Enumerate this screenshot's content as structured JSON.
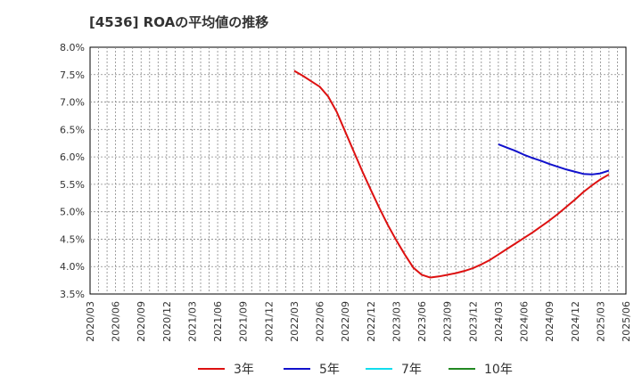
{
  "title": "[4536]  ROAの平均値の推移",
  "chart_data": {
    "type": "line",
    "title": "[4536]  ROAの平均値の推移",
    "xlabel": "",
    "ylabel": "",
    "ylim": [
      3.5,
      8.0
    ],
    "y_ticks": [
      "8.0%",
      "7.5%",
      "7.0%",
      "6.5%",
      "6.0%",
      "5.5%",
      "5.0%",
      "4.5%",
      "4.0%",
      "3.5%"
    ],
    "y_tick_values": [
      8.0,
      7.5,
      7.0,
      6.5,
      6.0,
      5.5,
      5.0,
      4.5,
      4.0,
      3.5
    ],
    "x_ticks": [
      "2020/03",
      "2020/06",
      "2020/09",
      "2020/12",
      "2021/03",
      "2021/06",
      "2021/09",
      "2021/12",
      "2022/03",
      "2022/06",
      "2022/09",
      "2022/12",
      "2023/03",
      "2023/06",
      "2023/09",
      "2023/12",
      "2024/03",
      "2024/06",
      "2024/09",
      "2024/12",
      "2025/03",
      "2025/06"
    ],
    "grid": true,
    "legend_position": "bottom",
    "series": [
      {
        "name": "3年",
        "color": "#dd1111",
        "points": [
          [
            "2022/03",
            7.57
          ],
          [
            "2022/04",
            7.48
          ],
          [
            "2022/05",
            7.38
          ],
          [
            "2022/06",
            7.28
          ],
          [
            "2022/07",
            7.1
          ],
          [
            "2022/08",
            6.82
          ],
          [
            "2022/09",
            6.46
          ],
          [
            "2022/10",
            6.1
          ],
          [
            "2022/11",
            5.74
          ],
          [
            "2022/12",
            5.4
          ],
          [
            "2023/01",
            5.07
          ],
          [
            "2023/02",
            4.76
          ],
          [
            "2023/03",
            4.48
          ],
          [
            "2023/04",
            4.22
          ],
          [
            "2023/05",
            3.98
          ],
          [
            "2023/06",
            3.85
          ],
          [
            "2023/07",
            3.8
          ],
          [
            "2023/08",
            3.82
          ],
          [
            "2023/09",
            3.85
          ],
          [
            "2023/10",
            3.88
          ],
          [
            "2023/11",
            3.92
          ],
          [
            "2023/12",
            3.97
          ],
          [
            "2024/01",
            4.04
          ],
          [
            "2024/02",
            4.12
          ],
          [
            "2024/03",
            4.22
          ],
          [
            "2024/04",
            4.32
          ],
          [
            "2024/05",
            4.42
          ],
          [
            "2024/06",
            4.52
          ],
          [
            "2024/07",
            4.62
          ],
          [
            "2024/08",
            4.73
          ],
          [
            "2024/09",
            4.84
          ],
          [
            "2024/10",
            4.96
          ],
          [
            "2024/11",
            5.09
          ],
          [
            "2024/12",
            5.22
          ],
          [
            "2025/01",
            5.36
          ],
          [
            "2025/02",
            5.48
          ],
          [
            "2025/03",
            5.59
          ],
          [
            "2025/04",
            5.68
          ]
        ]
      },
      {
        "name": "5年",
        "color": "#1111cc",
        "points": [
          [
            "2024/03",
            6.23
          ],
          [
            "2024/04",
            6.17
          ],
          [
            "2024/05",
            6.11
          ],
          [
            "2024/06",
            6.04
          ],
          [
            "2024/07",
            5.98
          ],
          [
            "2024/08",
            5.93
          ],
          [
            "2024/09",
            5.87
          ],
          [
            "2024/10",
            5.82
          ],
          [
            "2024/11",
            5.77
          ],
          [
            "2024/12",
            5.73
          ],
          [
            "2025/01",
            5.69
          ],
          [
            "2025/02",
            5.68
          ],
          [
            "2025/03",
            5.7
          ],
          [
            "2025/04",
            5.75
          ]
        ]
      },
      {
        "name": "7年",
        "color": "#11ddee",
        "points": []
      },
      {
        "name": "10年",
        "color": "#228822",
        "points": []
      }
    ]
  }
}
